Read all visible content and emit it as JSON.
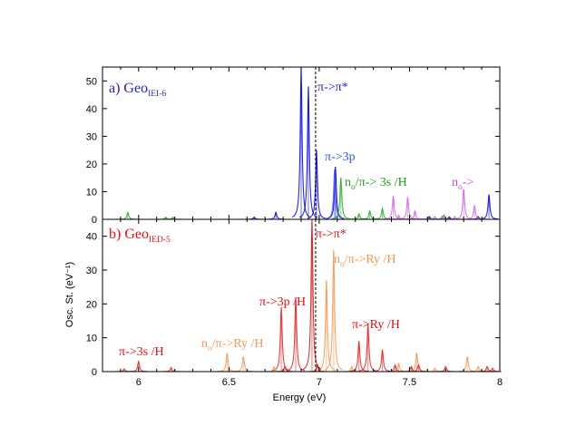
{
  "chart_data": {
    "type": "line",
    "subtype": "stacked spectra panels (stick + broadened peaks)",
    "xlabel": "Energy (eV)",
    "ylabel": "Osc. St. (eV⁻¹)",
    "xlim": [
      5.8,
      8.0
    ],
    "xticks": [
      "6",
      "6.5",
      "7",
      "7.5",
      "8"
    ],
    "panels": [
      {
        "id": "a",
        "title_main": "a) Geo",
        "title_sub": "IEI-6",
        "title_color": "#2222bb",
        "ylim": [
          0,
          55
        ],
        "yticks": [
          "0",
          "10",
          "20",
          "30",
          "40",
          "50"
        ],
        "vline_x": 6.98,
        "series": [
          {
            "name": "π->π*",
            "color": "#0000cc",
            "peaks": [
              [
                6.9,
                55
              ],
              [
                6.94,
                48
              ],
              [
                6.985,
                25
              ],
              [
                7.09,
                19
              ],
              [
                6.64,
                0.8
              ],
              [
                6.76,
                2.5
              ],
              [
                7.61,
                1.0
              ],
              [
                7.72,
                0.9
              ],
              [
                7.88,
                1.0
              ],
              [
                7.94,
                9
              ]
            ]
          },
          {
            "name": "π->3p",
            "color": "#4455ee",
            "peaks": [
              [
                7.085,
                18
              ]
            ]
          },
          {
            "name": "n_o/π-> 3s /H",
            "color": "#22aa22",
            "peaks": [
              [
                5.94,
                2.5
              ],
              [
                6.15,
                0.8
              ],
              [
                6.19,
                0.8
              ],
              [
                7.12,
                15
              ],
              [
                7.22,
                2.0
              ],
              [
                7.28,
                3.0
              ],
              [
                7.35,
                4.0
              ],
              [
                7.69,
                1.5
              ]
            ]
          },
          {
            "name": "n_o->",
            "color": "#cc66dd",
            "peaks": [
              [
                7.41,
                8.5
              ],
              [
                7.44,
                1.5
              ],
              [
                7.49,
                8
              ],
              [
                7.53,
                3.0
              ],
              [
                7.64,
                1.0
              ],
              [
                7.68,
                1.2
              ],
              [
                7.75,
                1.0
              ],
              [
                7.8,
                11
              ],
              [
                7.86,
                5.0
              ]
            ]
          }
        ],
        "annotations": [
          {
            "text": "π->π*",
            "color": "#2222bb"
          },
          {
            "text": "π->3p",
            "color": "#3355dd"
          },
          {
            "text": "n",
            "sub": "o",
            "rest": "/π-> 3s /H",
            "color": "#229922"
          },
          {
            "text": "n",
            "sub": "o",
            "rest": "->",
            "color": "#cc44dd"
          }
        ]
      },
      {
        "id": "b",
        "title_main": "b) Geo",
        "title_sub": "IED-5",
        "title_color": "#dd1111",
        "ylim": [
          0,
          45
        ],
        "yticks": [
          "0",
          "10",
          "20",
          "30",
          "40"
        ],
        "vline_x": 6.98,
        "series": [
          {
            "name": "π->π*",
            "color": "#cc1111",
            "peaks": [
              [
                6.96,
                45
              ],
              [
                6.99,
                2.0
              ]
            ]
          },
          {
            "name": "π->3p /H",
            "color": "#dd2222",
            "peaks": [
              [
                6.79,
                19
              ],
              [
                6.87,
                22
              ],
              [
                6.81,
                1.5
              ]
            ]
          },
          {
            "name": "π->3s /H",
            "color": "#dd2222",
            "peaks": [
              [
                5.92,
                0.8
              ],
              [
                6.0,
                3.0
              ],
              [
                6.18,
                1.2
              ]
            ]
          },
          {
            "name": "n_o/π->Ry /H",
            "color": "#ee9955",
            "peaks": [
              [
                6.49,
                5.5
              ],
              [
                6.58,
                4.5
              ],
              [
                6.75,
                1.5
              ],
              [
                7.04,
                27
              ],
              [
                7.08,
                36
              ],
              [
                7.18,
                1.5
              ],
              [
                7.44,
                2.5
              ],
              [
                7.54,
                5.5
              ],
              [
                7.64,
                1.0
              ],
              [
                7.82,
                4.5
              ],
              [
                7.88,
                1.5
              ]
            ]
          },
          {
            "name": "π->Ry /H",
            "color": "#dd2222",
            "peaks": [
              [
                7.22,
                9
              ],
              [
                7.27,
                14
              ],
              [
                7.35,
                6.5
              ],
              [
                7.42,
                2.0
              ],
              [
                7.51,
                1.5
              ],
              [
                7.55,
                2.0
              ],
              [
                7.7,
                1.5
              ],
              [
                7.93,
                1.5
              ],
              [
                7.96,
                1.0
              ]
            ]
          }
        ],
        "annotations": [
          {
            "text": "π->π*",
            "color": "#dd1111"
          },
          {
            "text": "n",
            "sub": "o",
            "rest": "/π->Ry /H",
            "color": "#ee9955"
          },
          {
            "text": "π->3p /H",
            "color": "#dd1111"
          },
          {
            "text": "π->Ry /H",
            "color": "#dd1111"
          },
          {
            "text": "n",
            "sub": "o",
            "rest": "/π->Ry /H",
            "color": "#ee9955"
          },
          {
            "text": "π->3s /H",
            "color": "#dd1111"
          }
        ]
      }
    ]
  }
}
